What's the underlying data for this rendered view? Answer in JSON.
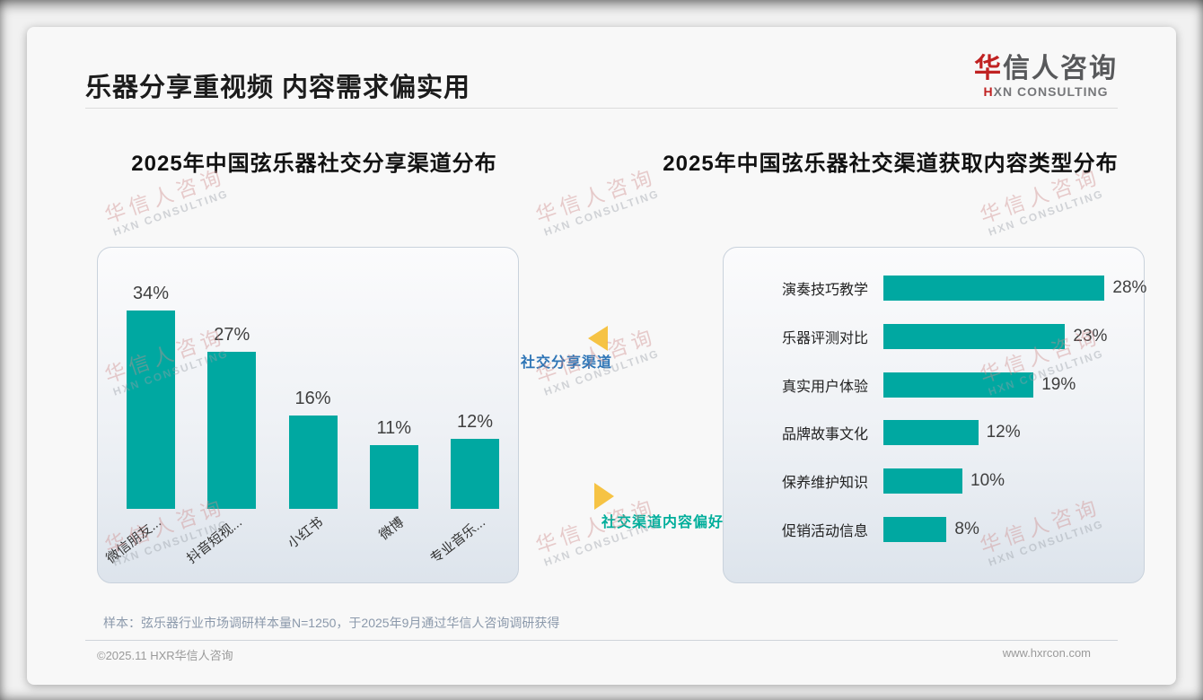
{
  "page": {
    "title": "乐器分享重视频 内容需求偏实用",
    "logo": {
      "cn_first": "华",
      "cn_rest": "信人咨询",
      "en_first": "H",
      "en_rest": "XN CONSULTING"
    },
    "sample_note": "样本：弦乐器行业市场调研样本量N=1250，于2025年9月通过华信人咨询调研获得",
    "footer_left": "©2025.11 HXR华信人咨询",
    "footer_right": "www.hxrcon.com",
    "watermark": {
      "cn": "华信人咨询",
      "en": "HXN CONSULTING"
    }
  },
  "middle": {
    "label_top": "社交分享渠道",
    "label_bottom": "社交渠道内容偏好"
  },
  "colors": {
    "bar_teal": "#00a8a1",
    "arrow_yellow": "#f6c344",
    "label_blue": "#2e75b6",
    "label_teal": "#00ae9b",
    "logo_red": "#c02222"
  },
  "chart_data": [
    {
      "type": "bar",
      "orientation": "vertical",
      "title": "2025年中国弦乐器社交分享渠道分布",
      "categories": [
        "微信朋友...",
        "抖音短视...",
        "小红书",
        "微博",
        "专业音乐..."
      ],
      "values": [
        34,
        27,
        16,
        11,
        12
      ],
      "unit": "%",
      "value_labels": [
        "34%",
        "27%",
        "16%",
        "11%",
        "12%"
      ],
      "bar_color": "#00a8a1",
      "ylim": [
        0,
        40
      ],
      "grid": false,
      "legend": "none"
    },
    {
      "type": "bar",
      "orientation": "horizontal",
      "title": "2025年中国弦乐器社交渠道获取内容类型分布",
      "categories": [
        "演奏技巧教学",
        "乐器评测对比",
        "真实用户体验",
        "品牌故事文化",
        "保养维护知识",
        "促销活动信息"
      ],
      "values": [
        28,
        23,
        19,
        12,
        10,
        8
      ],
      "unit": "%",
      "value_labels": [
        "28%",
        "23%",
        "19%",
        "12%",
        "10%",
        "8%"
      ],
      "bar_color": "#00a8a1",
      "xlim": [
        0,
        30
      ],
      "grid": false,
      "legend": "none"
    }
  ]
}
